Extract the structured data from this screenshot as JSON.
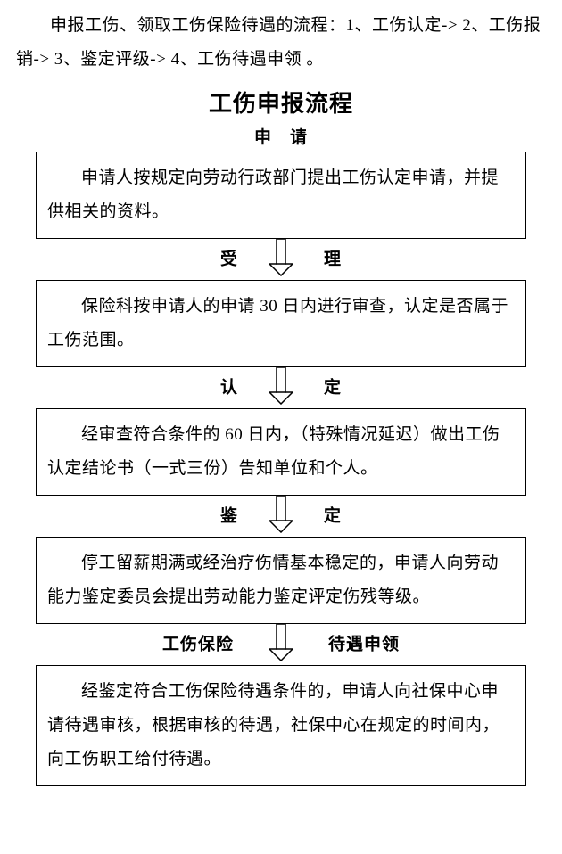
{
  "intro": "申报工伤、领取工伤保险待遇的流程：1、工伤认定-> 2、工伤报销-> 3、鉴定评级-> 4、工伤待遇申领 。",
  "title": "工伤申报流程",
  "steps": [
    {
      "label_left": "申",
      "label_right": "请",
      "label_single": true,
      "text": "申请人按规定向劳动行政部门提出工伤认定申请，并提供相关的资料。"
    },
    {
      "label_left": "受",
      "label_right": "理",
      "text": "保险科按申请人的申请 30 日内进行审查，认定是否属于工伤范围。"
    },
    {
      "label_left": "认",
      "label_right": "定",
      "text": "经审查符合条件的 60 日内，（特殊情况延迟）做出工伤认定结论书（一式三份）告知单位和个人。"
    },
    {
      "label_left": "鉴",
      "label_right": "定",
      "text": "停工留薪期满或经治疗伤情基本稳定的，申请人向劳动能力鉴定委员会提出劳动能力鉴定评定伤残等级。"
    },
    {
      "label_left": "工伤保险",
      "label_right": "待遇申领",
      "text": "经鉴定符合工伤保险待遇条件的，申请人向社保中心申请待遇审核，根据审核的待遇，社保中心在规定的时间内，向工伤职工给付待遇。"
    }
  ],
  "style": {
    "background": "#ffffff",
    "text_color": "#000000",
    "border_color": "#000000",
    "arrow_stroke": "#000000",
    "intro_fontsize": 19,
    "title_fontsize": 26,
    "label_fontsize": 19,
    "box_fontsize": 19,
    "split_gap_near": 60,
    "split_gap_far": 70
  }
}
